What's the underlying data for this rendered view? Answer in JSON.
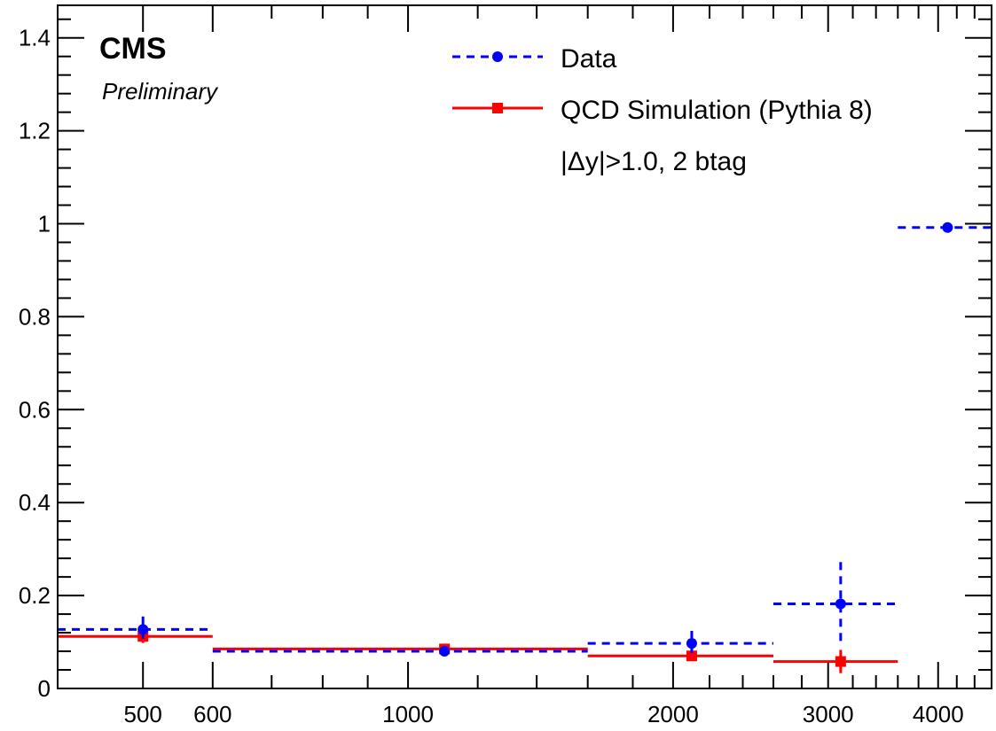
{
  "chart_data": {
    "type": "scatter",
    "title": "",
    "xlabel": "",
    "ylabel": "",
    "x_scale": "log",
    "xlim": [
      400,
      4600
    ],
    "ylim": [
      0,
      1.47
    ],
    "grid": false,
    "legend_placement": "top-right",
    "x_tick_labels": [
      "500",
      "600",
      "1000",
      "2000",
      "3000",
      "4000"
    ],
    "x_tick_values": [
      500,
      600,
      1000,
      2000,
      3000,
      4000
    ],
    "y_tick_labels": [
      "0",
      "0.2",
      "0.4",
      "0.6",
      "0.8",
      "1",
      "1.2",
      "1.4"
    ],
    "y_tick_values": [
      0,
      0.2,
      0.4,
      0.6,
      0.8,
      1.0,
      1.2,
      1.4
    ],
    "annotations": {
      "experiment": "CMS",
      "status": "Preliminary",
      "selection": "|Δy|>1.0, 2 btag"
    },
    "series": [
      {
        "name": "Data",
        "color": "#0000ff",
        "line_style": "dashed",
        "marker": "circle",
        "bins": [
          {
            "xlo": 400,
            "xhi": 600,
            "x": 500,
            "y": 0.127,
            "yerr": 0.028
          },
          {
            "xlo": 600,
            "xhi": 1600,
            "x": 1100,
            "y": 0.08,
            "yerr": 0.008
          },
          {
            "xlo": 1600,
            "xhi": 2600,
            "x": 2100,
            "y": 0.097,
            "yerr": 0.027
          },
          {
            "xlo": 2600,
            "xhi": 3600,
            "x": 3100,
            "y": 0.182,
            "yerr": 0.09
          },
          {
            "xlo": 3600,
            "xhi": 4600,
            "x": 4100,
            "y": 0.992,
            "yerr": 0.0
          }
        ]
      },
      {
        "name": "QCD Simulation (Pythia 8)",
        "color": "#ff0000",
        "line_style": "solid",
        "marker": "square",
        "bins": [
          {
            "xlo": 400,
            "xhi": 600,
            "x": 500,
            "y": 0.112,
            "yerr": 0.014
          },
          {
            "xlo": 600,
            "xhi": 1600,
            "x": 1100,
            "y": 0.085,
            "yerr": 0.006
          },
          {
            "xlo": 1600,
            "xhi": 2600,
            "x": 2100,
            "y": 0.07,
            "yerr": 0.01
          },
          {
            "xlo": 2600,
            "xhi": 3600,
            "x": 3100,
            "y": 0.058,
            "yerr": 0.025
          }
        ]
      }
    ]
  }
}
